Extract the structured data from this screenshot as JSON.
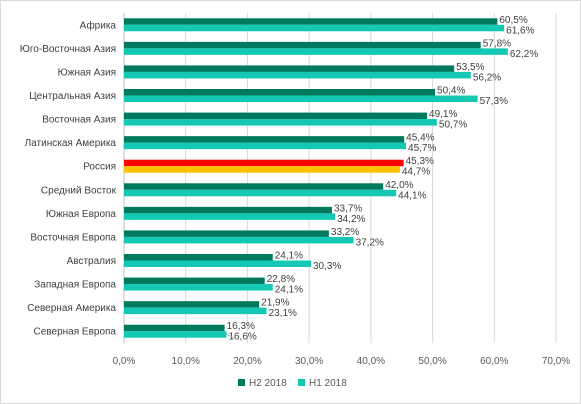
{
  "chart_data": {
    "type": "bar",
    "orientation": "horizontal",
    "categories": [
      "Африка",
      "Юго-Восточная Азия",
      "Южная Азия",
      "Центральная Азия",
      "Восточная Азия",
      "Латинская Америка",
      "Россия",
      "Средний Восток",
      "Южная Европа",
      "Восточная Европа",
      "Австралия",
      "Западная Европа",
      "Северная Америка",
      "Северная Европа"
    ],
    "series": [
      {
        "name": "H2 2018",
        "color": "#007a5e",
        "values": [
          60.5,
          57.8,
          53.5,
          50.4,
          49.1,
          45.4,
          45.3,
          42.0,
          33.7,
          33.2,
          24.1,
          22.8,
          21.9,
          16.3
        ],
        "labels": [
          "60,5%",
          "57,8%",
          "53,5%",
          "50,4%",
          "49,1%",
          "45,4%",
          "45,3%",
          "42,0%",
          "33,7%",
          "33,2%",
          "24,1%",
          "22,8%",
          "21,9%",
          "16,3%"
        ]
      },
      {
        "name": "H1 2018",
        "color": "#14c8b4",
        "values": [
          61.6,
          62.2,
          56.2,
          57.3,
          50.7,
          45.7,
          44.7,
          44.1,
          34.2,
          37.2,
          30.3,
          24.1,
          23.1,
          16.6
        ],
        "labels": [
          "61,6%",
          "62,2%",
          "56,2%",
          "57,3%",
          "50,7%",
          "45,7%",
          "44,7%",
          "44,1%",
          "34,2%",
          "37,2%",
          "30,3%",
          "24,1%",
          "23,1%",
          "16,6%"
        ]
      }
    ],
    "highlight": {
      "category": "Россия",
      "colors": [
        "#ff0000",
        "#ffc000"
      ]
    },
    "xlim": [
      0,
      70
    ],
    "ticks": [
      0,
      10,
      20,
      30,
      40,
      50,
      60,
      70
    ],
    "tick_labels": [
      "0,0%",
      "10,0%",
      "20,0%",
      "30,0%",
      "40,0%",
      "50,0%",
      "60,0%",
      "70,0%"
    ],
    "grid": true,
    "legend_position": "bottom",
    "title": "",
    "xlabel": "",
    "ylabel": ""
  }
}
